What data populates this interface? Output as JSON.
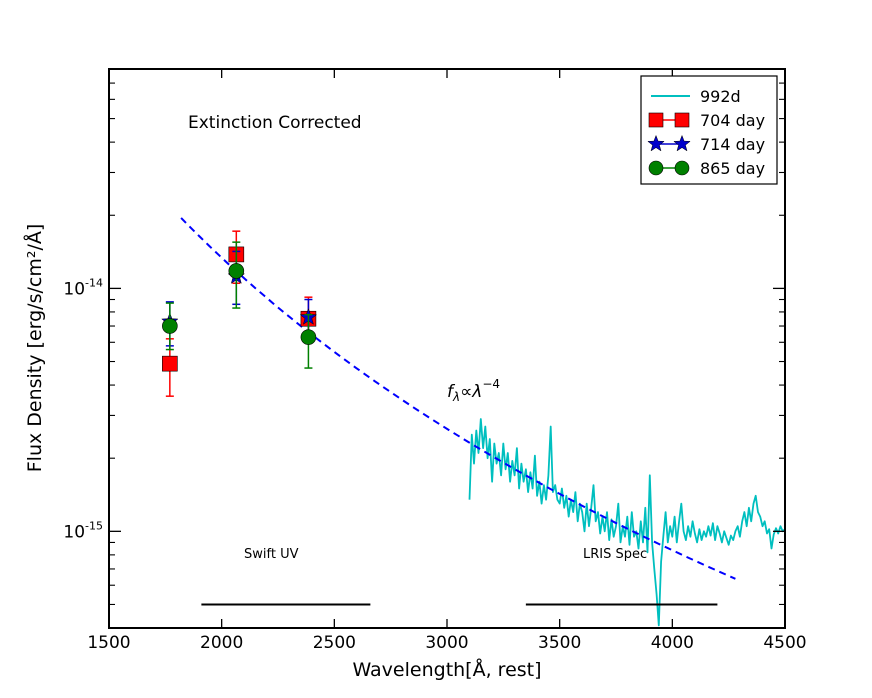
{
  "chart_data": {
    "type": "scatter",
    "xlabel": "Wavelength[Å, rest]",
    "ylabel": "Flux Density [erg/s/cm²/Å]",
    "xlim": [
      1500,
      4500
    ],
    "ylim": [
      4e-16,
      8e-14
    ],
    "yscale": "log",
    "grid": false,
    "legend_position": "top-right",
    "x_ticks": [
      1500,
      2000,
      2500,
      3000,
      3500,
      4000,
      4500
    ],
    "x_tick_labels": [
      "1500",
      "2000",
      "2500",
      "3000",
      "3500",
      "4000",
      "4500"
    ],
    "y_tick_labels": [
      {
        "value": 1e-14,
        "base": "10",
        "exp": "-14"
      },
      {
        "value": 1e-15,
        "base": "10",
        "exp": "-15"
      }
    ],
    "annotations": {
      "corrected": "Extinction Corrected",
      "powerlaw_f": "f",
      "powerlaw_sub": "λ",
      "powerlaw_rel": "∝λ",
      "powerlaw_exp": "−4",
      "swift_label": "Swift UV",
      "lris_label": "LRIS Spec"
    },
    "bands": [
      {
        "label": "Swift UV",
        "x_start": 1910,
        "x_end": 2660,
        "y": 5e-16
      },
      {
        "label": "LRIS Spec",
        "x_start": 3350,
        "x_end": 4200,
        "y": 5e-16
      }
    ],
    "powerlaw": {
      "x_start": 1820,
      "x_end": 4280,
      "y_at_start": 1.95e-14,
      "index": -4,
      "color": "#0000ff"
    },
    "spectrum": {
      "name": "992d",
      "color": "#00bfbf",
      "x": [
        3100,
        3110,
        3120,
        3130,
        3140,
        3150,
        3160,
        3170,
        3180,
        3190,
        3200,
        3210,
        3220,
        3230,
        3240,
        3250,
        3260,
        3270,
        3280,
        3290,
        3300,
        3310,
        3320,
        3330,
        3340,
        3350,
        3360,
        3370,
        3380,
        3390,
        3400,
        3410,
        3420,
        3430,
        3440,
        3450,
        3460,
        3470,
        3480,
        3490,
        3500,
        3510,
        3520,
        3530,
        3540,
        3550,
        3560,
        3570,
        3580,
        3590,
        3600,
        3610,
        3620,
        3630,
        3640,
        3650,
        3660,
        3670,
        3680,
        3690,
        3700,
        3710,
        3720,
        3730,
        3740,
        3750,
        3760,
        3770,
        3780,
        3790,
        3800,
        3810,
        3820,
        3830,
        3840,
        3850,
        3860,
        3870,
        3880,
        3890,
        3900,
        3910,
        3920,
        3930,
        3940,
        3950,
        3960,
        3970,
        3980,
        3990,
        4000,
        4010,
        4020,
        4030,
        4040,
        4050,
        4060,
        4070,
        4080,
        4090,
        4100,
        4110,
        4120,
        4130,
        4140,
        4150,
        4160,
        4170,
        4180,
        4190,
        4200,
        4210,
        4220,
        4230,
        4240,
        4250,
        4260,
        4270,
        4280,
        4290,
        4300,
        4310,
        4320,
        4330,
        4340,
        4350,
        4360,
        4370,
        4380,
        4390,
        4400,
        4410,
        4420,
        4430,
        4440,
        4450,
        4460,
        4470,
        4480,
        4490,
        4500
      ],
      "y": [
        1.35e-15,
        2.5e-15,
        1.9e-15,
        2.6e-15,
        2.1e-15,
        2.9e-15,
        2.2e-15,
        2.7e-15,
        2e-15,
        2.4e-15,
        1.6e-15,
        2.3e-15,
        1.9e-15,
        2.1e-15,
        1.7e-15,
        2.3e-15,
        1.8e-15,
        2.1e-15,
        1.6e-15,
        1.95e-15,
        1.7e-15,
        2.2e-15,
        1.5e-15,
        1.9e-15,
        1.6e-15,
        1.8e-15,
        1.45e-15,
        1.75e-15,
        1.5e-15,
        2.05e-15,
        1.4e-15,
        1.6e-15,
        1.3e-15,
        1.55e-15,
        1.35e-15,
        1.7e-15,
        2.7e-15,
        1.45e-15,
        1.55e-15,
        1.35e-15,
        1.3e-15,
        1.5e-15,
        1.25e-15,
        1.4e-15,
        1.15e-15,
        1.35e-15,
        1.2e-15,
        1.45e-15,
        1.1e-15,
        1.3e-15,
        1.2e-15,
        1e-15,
        1.3e-15,
        1.05e-15,
        1.25e-15,
        1.55e-15,
        1.1e-15,
        1.2e-15,
        9.8e-16,
        1.15e-15,
        1e-15,
        1.2e-15,
        9.2e-16,
        1.12e-15,
        9.5e-16,
        1.05e-15,
        1.3e-15,
        9e-16,
        1.05e-15,
        9.5e-16,
        1.15e-15,
        8.8e-16,
        1.2e-15,
        9.5e-16,
        1e-15,
        8.5e-16,
        1.1e-15,
        9e-16,
        1.25e-15,
        8.2e-16,
        1.7e-15,
        9e-16,
        7e-16,
        5.5e-16,
        4.1e-16,
        7.5e-16,
        9.5e-16,
        1.2e-15,
        9e-16,
        1.05e-15,
        9.5e-16,
        1.15e-15,
        9e-16,
        1.1e-15,
        1.3e-15,
        1e-15,
        9.2e-16,
        1.05e-15,
        9.5e-16,
        1.1e-15,
        9.8e-16,
        9e-16,
        1.02e-15,
        9.2e-16,
        1e-15,
        9.5e-16,
        1.05e-15,
        9.6e-16,
        1.08e-15,
        9.2e-16,
        1.05e-15,
        9.8e-16,
        9e-16,
        1e-15,
        9.4e-16,
        8.8e-16,
        9.6e-16,
        9.2e-16,
        1e-15,
        1.05e-15,
        9.5e-16,
        1.1e-15,
        1.2e-15,
        1.05e-15,
        1.25e-15,
        1.1e-15,
        1.3e-15,
        1.4e-15,
        1.2e-15,
        1.15e-15,
        1.05e-15,
        1.1e-15,
        9.8e-16,
        1.02e-15,
        8.5e-16,
        9.7e-16,
        1.03e-15,
        9.8e-16,
        1.05e-15,
        1e-15,
        1.02e-15
      ]
    },
    "series": [
      {
        "name": "704 day",
        "marker": "square",
        "color": "#ff0000",
        "points": [
          {
            "x": 1770,
            "y": 4.9e-15,
            "yerr_low": 3.6e-15,
            "yerr_high": 6.2e-15
          },
          {
            "x": 2065,
            "y": 1.38e-14,
            "yerr_low": 1.05e-14,
            "yerr_high": 1.72e-14
          },
          {
            "x": 2385,
            "y": 7.5e-15,
            "yerr_low": 6e-15,
            "yerr_high": 9.2e-15
          }
        ]
      },
      {
        "name": "714 day",
        "marker": "star",
        "color": "#0000cc",
        "points": [
          {
            "x": 1770,
            "y": 7.3e-15,
            "yerr_low": 5.8e-15,
            "yerr_high": 8.8e-15
          },
          {
            "x": 2065,
            "y": 1.12e-14,
            "yerr_low": 8.6e-15,
            "yerr_high": 1.42e-14
          },
          {
            "x": 2385,
            "y": 7.6e-15,
            "yerr_low": 6.2e-15,
            "yerr_high": 9e-15
          }
        ]
      },
      {
        "name": "865 day",
        "marker": "circle",
        "color": "#008000",
        "points": [
          {
            "x": 1770,
            "y": 7e-15,
            "yerr_low": 5.6e-15,
            "yerr_high": 8.7e-15
          },
          {
            "x": 2065,
            "y": 1.18e-14,
            "yerr_low": 8.3e-15,
            "yerr_high": 1.55e-14
          },
          {
            "x": 2385,
            "y": 6.3e-15,
            "yerr_low": 4.7e-15,
            "yerr_high": 7.8e-15
          }
        ]
      }
    ]
  }
}
